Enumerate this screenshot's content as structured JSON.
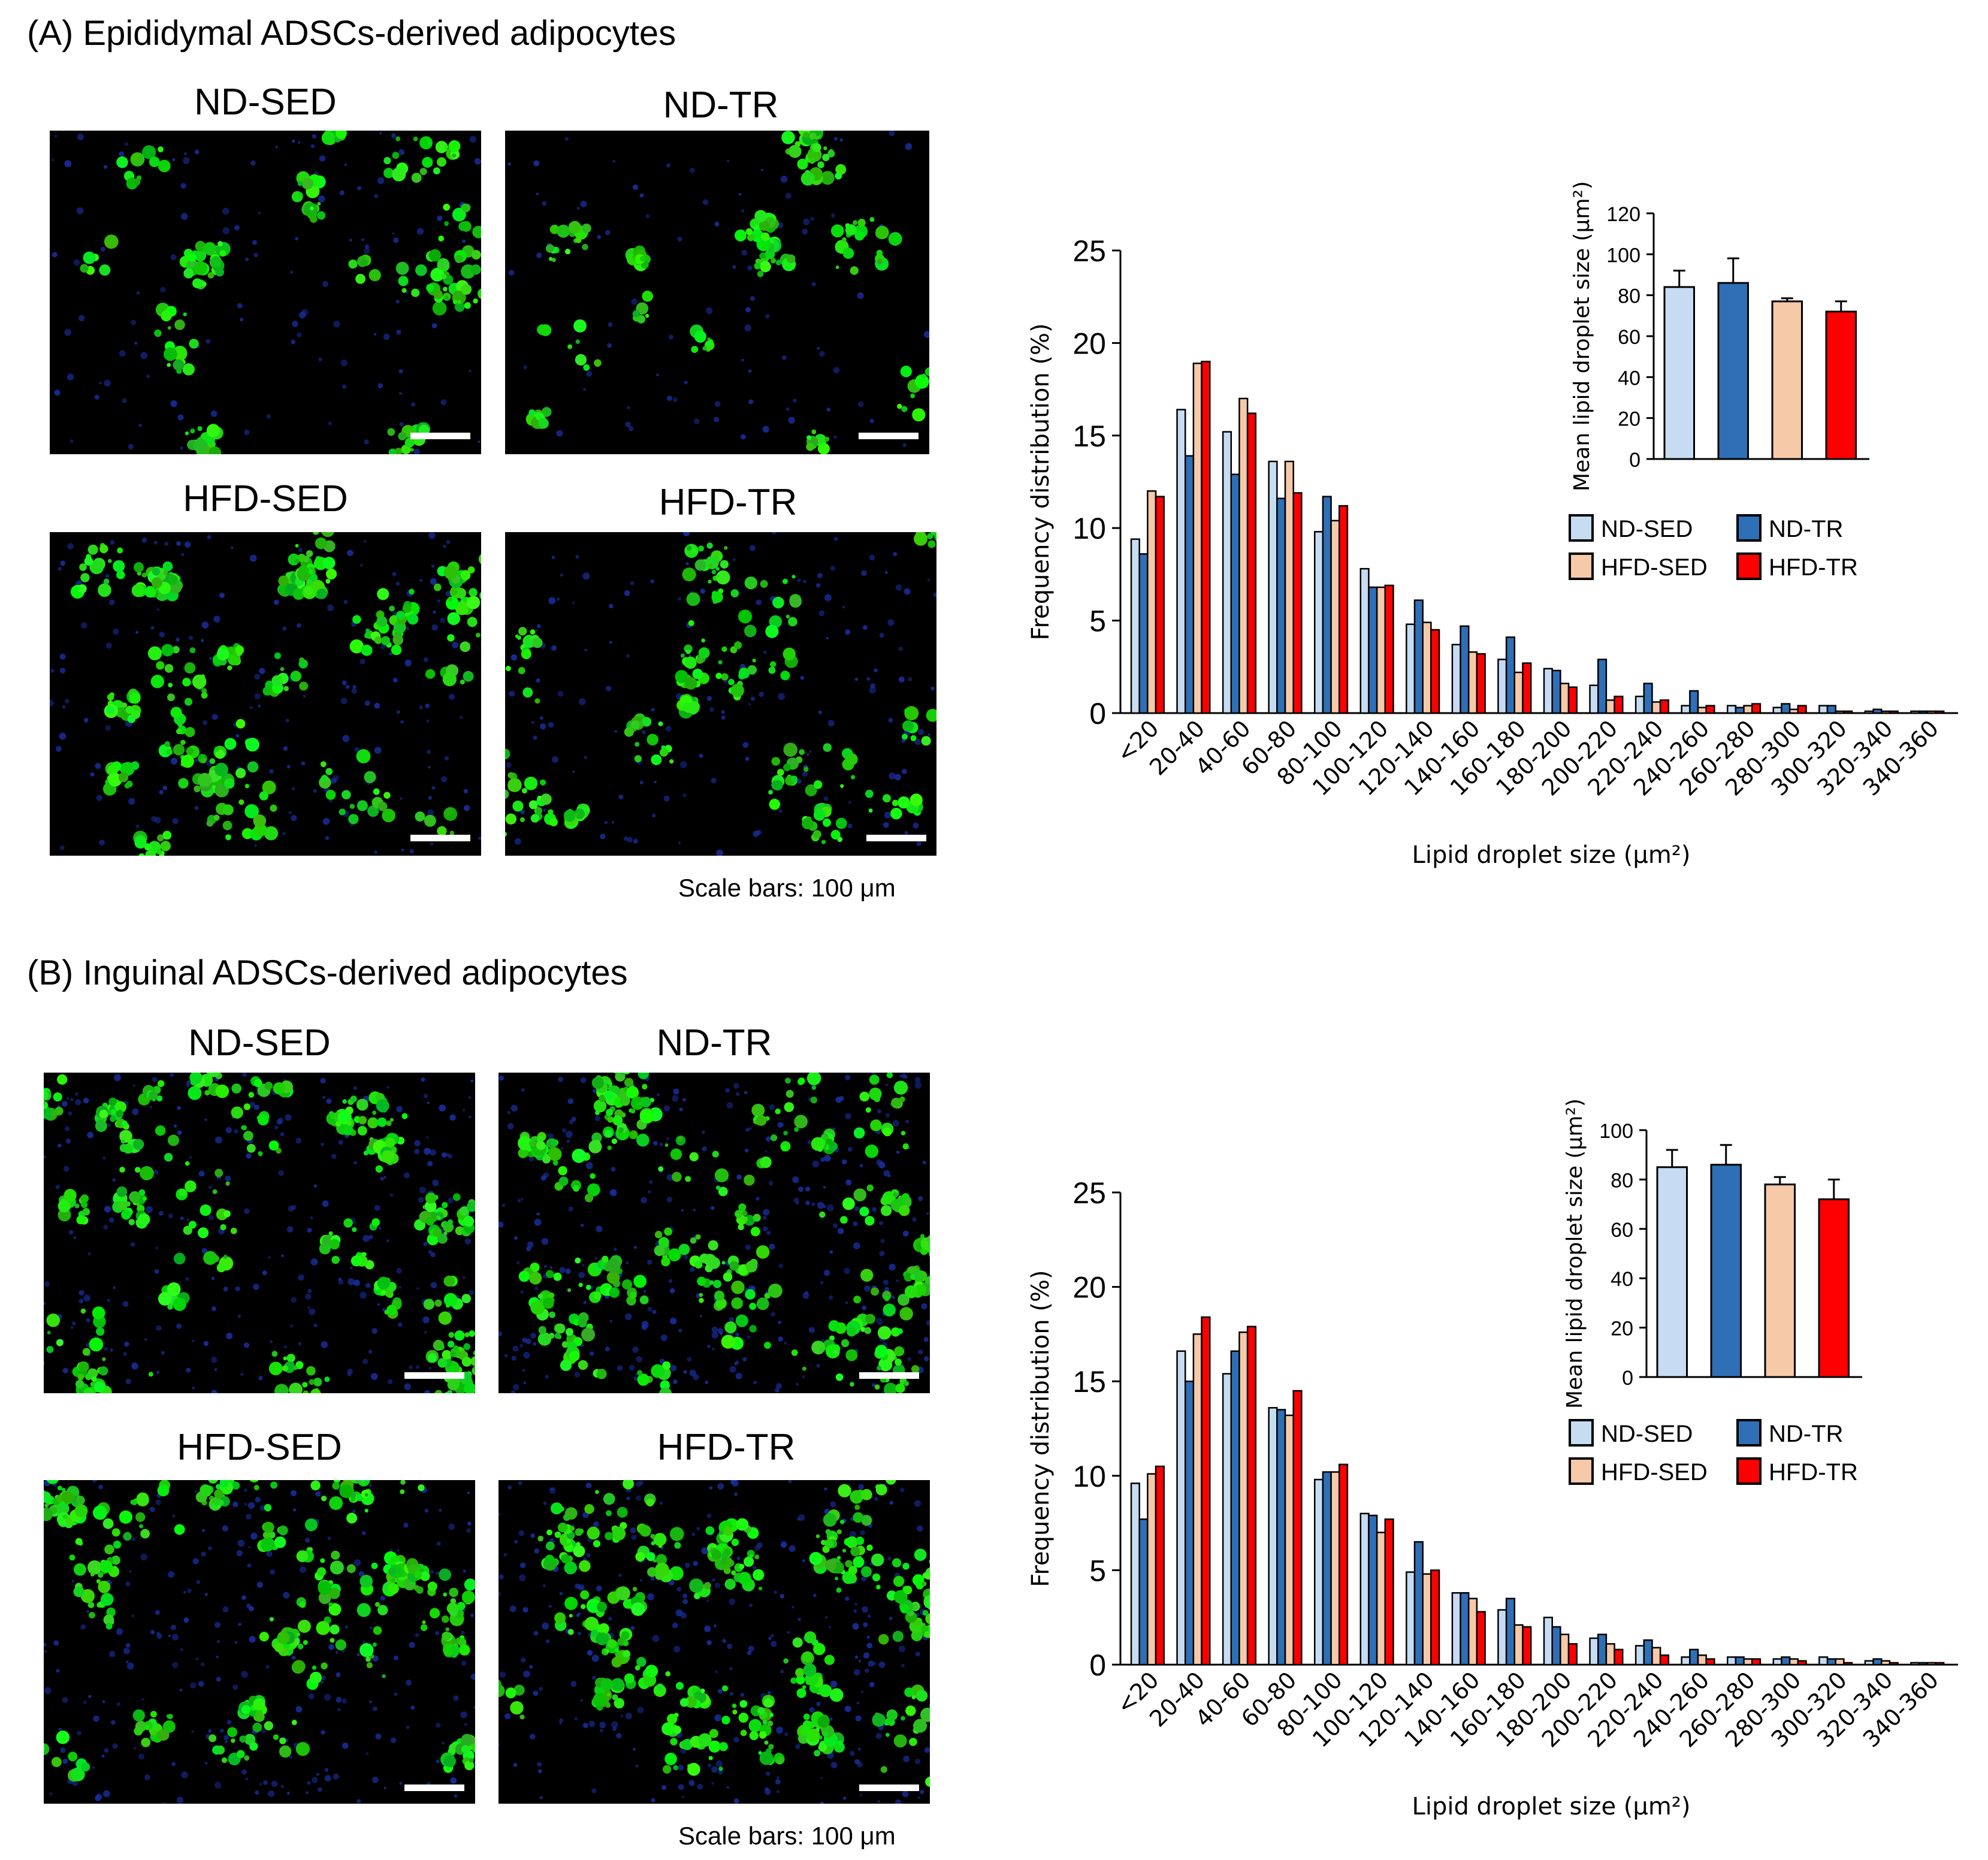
{
  "panels": [
    {
      "id": "A",
      "title": "(A) Epididymal ADSCs-derived adipocytes",
      "image_labels": [
        "ND-SED",
        "ND-TR",
        "HFD-SED",
        "HFD-TR"
      ],
      "scale_note": "Scale bars: 100 μm"
    },
    {
      "id": "B",
      "title": "(B) Inguinal ADSCs-derived adipocytes",
      "image_labels": [
        "ND-SED",
        "ND-TR",
        "HFD-SED",
        "HFD-TR"
      ],
      "scale_note": "Scale bars: 100 μm"
    }
  ],
  "colors": {
    "ND-SED": "#c6dcf2",
    "ND-TR": "#2e6fb5",
    "HFD-SED": "#f6c9a8",
    "HFD-TR": "#ff0000",
    "bar_stroke": "#000000"
  },
  "chart_data": [
    {
      "type": "bar",
      "panel": "A",
      "xlabel": "Lipid droplet size (μm²)",
      "ylabel": "Frequency distribution  (%)",
      "ylim": [
        0,
        25
      ],
      "yticks": [
        0,
        5,
        10,
        15,
        20,
        25
      ],
      "categories": [
        "<20",
        "20-40",
        "40-60",
        "60-80",
        "80-100",
        "100-120",
        "120-140",
        "140-160",
        "160-180",
        "180-200",
        "200-220",
        "220-240",
        "240-260",
        "260-280",
        "280-300",
        "300-320",
        "320-340",
        "340-360"
      ],
      "series": [
        {
          "name": "ND-SED",
          "values": [
            9.4,
            16.4,
            15.2,
            13.6,
            9.8,
            7.8,
            4.8,
            3.7,
            2.9,
            2.4,
            1.5,
            0.9,
            0.4,
            0.4,
            0.3,
            0.4,
            0.1,
            0.1
          ]
        },
        {
          "name": "ND-TR",
          "values": [
            8.6,
            13.9,
            12.9,
            11.6,
            11.7,
            6.8,
            6.1,
            4.7,
            4.1,
            2.3,
            2.9,
            1.6,
            1.2,
            0.3,
            0.5,
            0.4,
            0.2,
            0.1
          ]
        },
        {
          "name": "HFD-SED",
          "values": [
            12.0,
            18.9,
            17.0,
            13.6,
            10.4,
            6.8,
            4.9,
            3.3,
            2.2,
            1.6,
            0.7,
            0.6,
            0.3,
            0.4,
            0.2,
            0.1,
            0.1,
            0.1
          ]
        },
        {
          "name": "HFD-TR",
          "values": [
            11.7,
            19.0,
            16.2,
            11.9,
            11.2,
            6.9,
            4.5,
            3.2,
            2.7,
            1.4,
            0.9,
            0.7,
            0.4,
            0.5,
            0.4,
            0.1,
            0.1,
            0.1
          ]
        }
      ],
      "legend_position": "top-right",
      "inset": {
        "type": "bar",
        "ylabel": "Mean lipid droplet size (μm²)",
        "ylim": [
          0,
          120
        ],
        "yticks": [
          0,
          20,
          40,
          60,
          80,
          100,
          120
        ],
        "categories": [
          "ND-SED",
          "ND-TR",
          "HFD-SED",
          "HFD-TR"
        ],
        "values": [
          84,
          86,
          77,
          72
        ],
        "errors": [
          8,
          12,
          1.5,
          5
        ]
      }
    },
    {
      "type": "bar",
      "panel": "B",
      "xlabel": "Lipid droplet size (μm²)",
      "ylabel": "Frequency distribution  (%)",
      "ylim": [
        0,
        25
      ],
      "yticks": [
        0,
        5,
        10,
        15,
        20,
        25
      ],
      "categories": [
        "<20",
        "20-40",
        "40-60",
        "60-80",
        "80-100",
        "100-120",
        "120-140",
        "140-160",
        "160-180",
        "180-200",
        "200-220",
        "220-240",
        "240-260",
        "260-280",
        "280-300",
        "300-320",
        "320-340",
        "340-360"
      ],
      "series": [
        {
          "name": "ND-SED",
          "values": [
            9.6,
            16.6,
            15.4,
            13.6,
            9.8,
            8.0,
            4.9,
            3.8,
            2.9,
            2.5,
            1.4,
            1.0,
            0.4,
            0.4,
            0.3,
            0.4,
            0.2,
            0.1
          ]
        },
        {
          "name": "ND-TR",
          "values": [
            7.7,
            15.0,
            16.6,
            13.5,
            10.2,
            7.9,
            6.5,
            3.8,
            3.5,
            2.0,
            1.6,
            1.3,
            0.8,
            0.4,
            0.4,
            0.3,
            0.3,
            0.1
          ]
        },
        {
          "name": "HFD-SED",
          "values": [
            10.1,
            17.5,
            17.6,
            13.2,
            10.2,
            7.0,
            4.8,
            3.5,
            2.1,
            1.6,
            1.1,
            0.9,
            0.5,
            0.3,
            0.3,
            0.3,
            0.2,
            0.1
          ]
        },
        {
          "name": "HFD-TR",
          "values": [
            10.5,
            18.4,
            17.9,
            14.5,
            10.6,
            7.7,
            5.0,
            2.8,
            2.0,
            1.1,
            0.8,
            0.5,
            0.3,
            0.3,
            0.2,
            0.1,
            0.1,
            0.1
          ]
        }
      ],
      "legend_position": "top-right",
      "inset": {
        "type": "bar",
        "ylabel": "Mean lipid droplet size (μm²)",
        "ylim": [
          0,
          100
        ],
        "yticks": [
          0,
          20,
          40,
          60,
          80,
          100
        ],
        "categories": [
          "ND-SED",
          "ND-TR",
          "HFD-SED",
          "HFD-TR"
        ],
        "values": [
          85,
          86,
          78,
          72
        ],
        "errors": [
          7,
          8,
          3,
          8
        ]
      }
    }
  ]
}
